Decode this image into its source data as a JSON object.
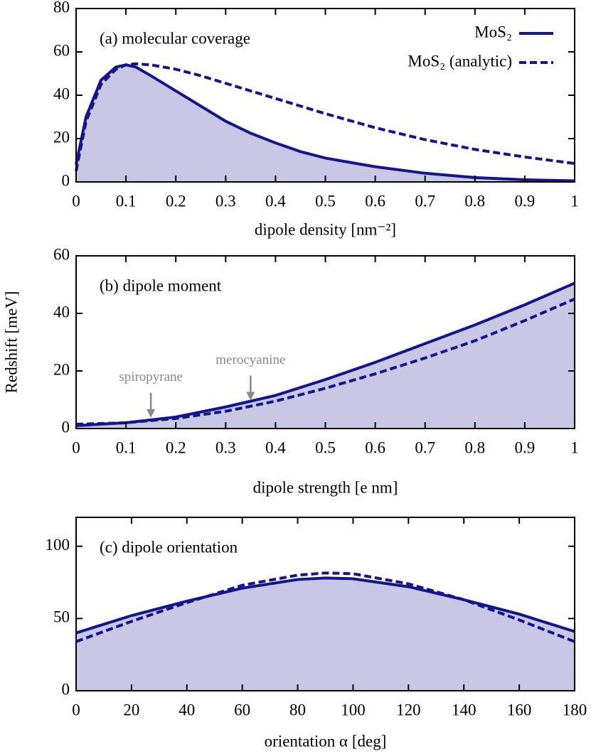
{
  "chart_data": [
    {
      "type": "line",
      "title": "(a) molecular coverage",
      "x_label": "dipole density [nm⁻²]",
      "x": [
        0,
        0.02,
        0.05,
        0.08,
        0.1,
        0.12,
        0.15,
        0.2,
        0.25,
        0.3,
        0.35,
        0.4,
        0.45,
        0.5,
        0.6,
        0.7,
        0.8,
        0.9,
        1
      ],
      "series": [
        {
          "name": "MoS₂",
          "color": "#14148c",
          "line_style": "solid",
          "fill": true,
          "values": [
            8,
            30,
            47,
            53,
            54,
            53,
            49,
            42,
            35,
            28,
            22.5,
            18,
            14,
            11,
            7,
            4,
            2,
            1,
            0.5
          ]
        },
        {
          "name": "MoS₂ (analytic)",
          "color": "#14148c",
          "line_style": "dashed",
          "fill": false,
          "values": [
            5,
            28,
            45,
            52,
            54,
            54.5,
            54,
            52,
            49,
            45.5,
            42,
            38.5,
            35,
            31.5,
            25,
            19.5,
            15,
            11.5,
            8.5
          ]
        }
      ],
      "xlim": [
        0,
        1
      ],
      "xticks": [
        0,
        0.1,
        0.2,
        0.3,
        0.4,
        0.5,
        0.6,
        0.7,
        0.8,
        0.9,
        1
      ],
      "ylim": [
        0,
        80
      ],
      "yticks": [
        0,
        20,
        40,
        60,
        80
      ],
      "legend": "top-right"
    },
    {
      "type": "line",
      "title": "(b) dipole moment",
      "x_label": "dipole strength [e nm]",
      "y_label": "Redshift [meV]",
      "x": [
        0,
        0.1,
        0.2,
        0.3,
        0.4,
        0.5,
        0.6,
        0.7,
        0.8,
        0.9,
        1
      ],
      "series": [
        {
          "color": "#14148c",
          "line_style": "solid",
          "fill": true,
          "values": [
            1,
            2,
            4,
            7.5,
            11.5,
            17,
            23,
            29.5,
            36,
            43,
            50.5
          ]
        },
        {
          "color": "#14148c",
          "line_style": "dashed",
          "fill": false,
          "values": [
            1.5,
            2,
            3.5,
            6,
            9.5,
            14,
            19,
            24.5,
            30.5,
            37.5,
            45
          ]
        }
      ],
      "annotations": [
        {
          "text": "spiropyrane",
          "x": 0.15,
          "y": 4
        },
        {
          "text": "merocyanine",
          "x": 0.35,
          "y": 10
        }
      ],
      "xlim": [
        0,
        1
      ],
      "xticks": [
        0,
        0.1,
        0.2,
        0.3,
        0.4,
        0.5,
        0.6,
        0.7,
        0.8,
        0.9,
        1
      ],
      "ylim": [
        0,
        60
      ],
      "yticks": [
        0,
        20,
        40,
        60
      ]
    },
    {
      "type": "line",
      "title": "(c) dipole orientation",
      "x_label": "orientation α [deg]",
      "x": [
        0,
        20,
        40,
        60,
        80,
        90,
        100,
        120,
        140,
        160,
        180
      ],
      "series": [
        {
          "color": "#14148c",
          "line_style": "solid",
          "fill": true,
          "values": [
            40,
            52,
            62,
            71,
            77,
            78,
            77.5,
            72,
            63,
            53,
            41
          ]
        },
        {
          "color": "#14148c",
          "line_style": "dashed",
          "fill": false,
          "values": [
            34,
            48,
            61,
            73,
            80,
            81.5,
            81,
            74,
            63,
            49,
            34
          ]
        }
      ],
      "xlim": [
        0,
        180
      ],
      "xticks": [
        0,
        20,
        40,
        60,
        80,
        100,
        120,
        140,
        160,
        180
      ],
      "ylim": [
        0,
        120
      ],
      "yticks": [
        0,
        50,
        100
      ]
    }
  ]
}
